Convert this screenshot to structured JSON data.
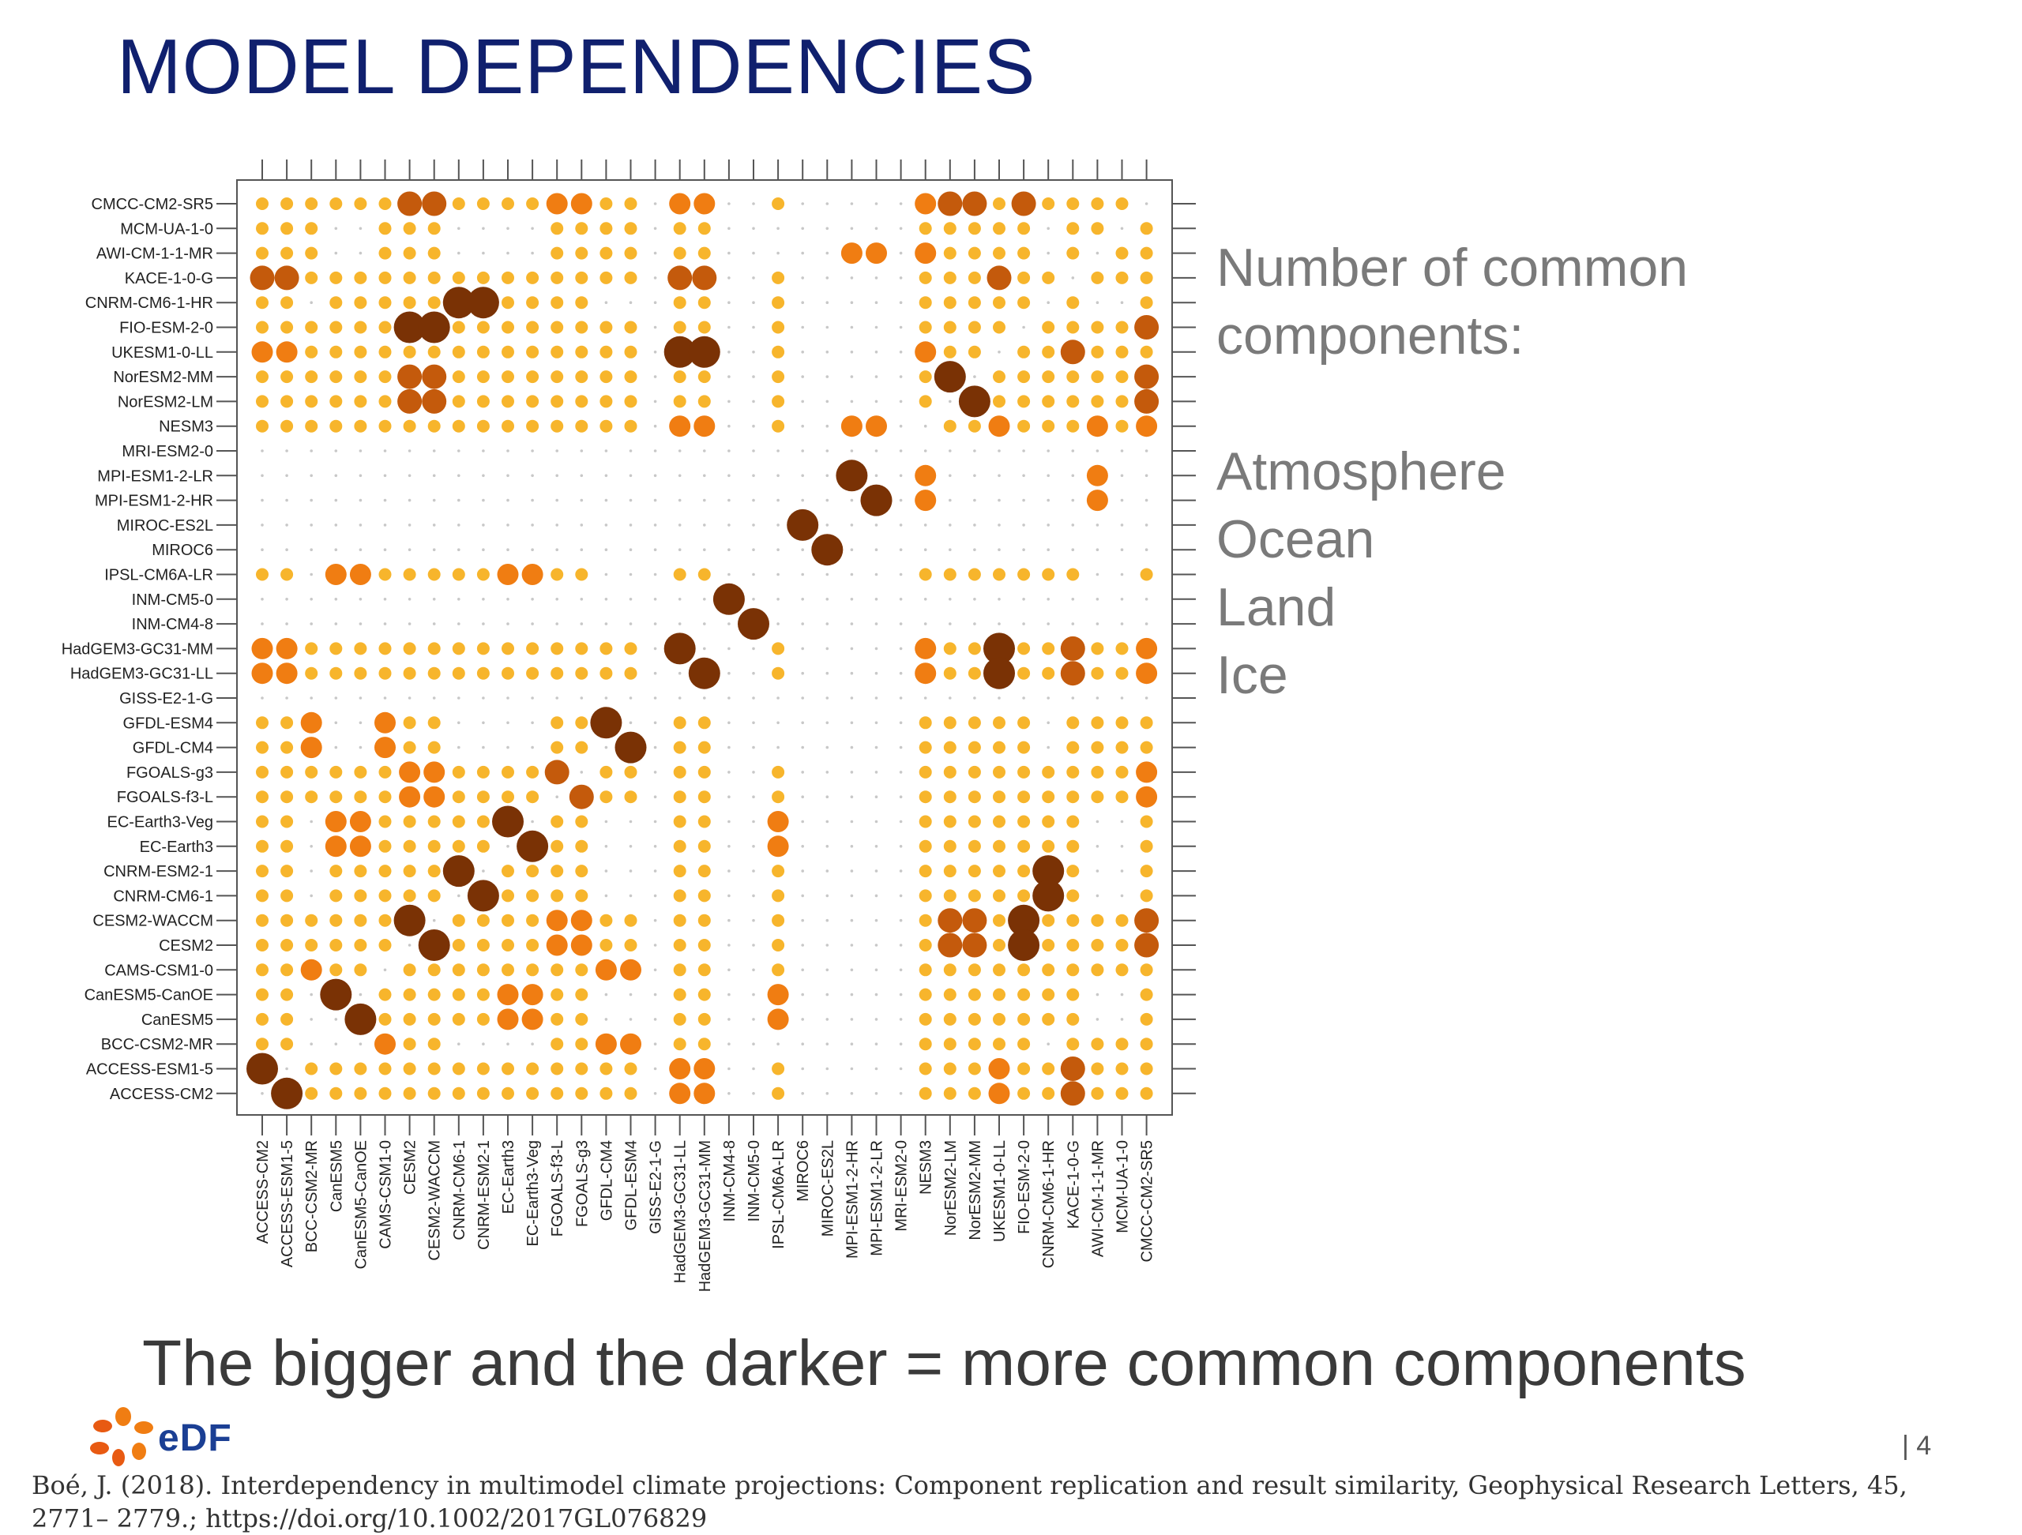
{
  "title": "MODEL DEPENDENCIES",
  "legend": {
    "heading": [
      "Number of common",
      "components:"
    ],
    "items": [
      "Atmosphere",
      "Ocean",
      "Land",
      "Ice"
    ]
  },
  "caption": "The bigger and the darker = more common components",
  "page_number": "| 4",
  "citation": "Boé, J. (2018). Interdependency in multimodel climate projections: Component replication and result similarity, Geophysical Research Letters, 45, 2771– 2779.; https://doi.org/10.1002/2017GL076829",
  "logo_text": "eDF",
  "colors": {
    "level1": "#f7b52c",
    "level2": "#f07d12",
    "level3": "#c45a0c",
    "level4": "#7a3205",
    "grid_dot": "#c8c8c8",
    "frame": "#555555",
    "title": "#10206e"
  },
  "chart_data": {
    "type": "matrix-bubble",
    "value_meaning": "number of common components (0-4)",
    "rows_top_to_bottom": [
      "CMCC-CM2-SR5",
      "MCM-UA-1-0",
      "AWI-CM-1-1-MR",
      "KACE-1-0-G",
      "CNRM-CM6-1-HR",
      "FIO-ESM-2-0",
      "UKESM1-0-LL",
      "NorESM2-MM",
      "NorESM2-LM",
      "NESM3",
      "MRI-ESM2-0",
      "MPI-ESM1-2-LR",
      "MPI-ESM1-2-HR",
      "MIROC-ES2L",
      "MIROC6",
      "IPSL-CM6A-LR",
      "INM-CM5-0",
      "INM-CM4-8",
      "HadGEM3-GC31-MM",
      "HadGEM3-GC31-LL",
      "GISS-E2-1-G",
      "GFDL-ESM4",
      "GFDL-CM4",
      "FGOALS-g3",
      "FGOALS-f3-L",
      "EC-Earth3-Veg",
      "EC-Earth3",
      "CNRM-ESM2-1",
      "CNRM-CM6-1",
      "CESM2-WACCM",
      "CESM2",
      "CAMS-CSM1-0",
      "CanESM5-CanOE",
      "CanESM5",
      "BCC-CSM2-MR",
      "ACCESS-ESM1-5",
      "ACCESS-CM2"
    ],
    "columns_left_to_right": [
      "ACCESS-CM2",
      "ACCESS-ESM1-5",
      "BCC-CSM2-MR",
      "CanESM5",
      "CanESM5-CanOE",
      "CAMS-CSM1-0",
      "CESM2",
      "CESM2-WACCM",
      "CNRM-CM6-1",
      "CNRM-ESM2-1",
      "EC-Earth3",
      "EC-Earth3-Veg",
      "FGOALS-f3-L",
      "FGOALS-g3",
      "GFDL-CM4",
      "GFDL-ESM4",
      "GISS-E2-1-G",
      "HadGEM3-GC31-LL",
      "HadGEM3-GC31-MM",
      "INM-CM4-8",
      "INM-CM5-0",
      "IPSL-CM6A-LR",
      "MIROC6",
      "MIROC-ES2L",
      "MPI-ESM1-2-HR",
      "MPI-ESM1-2-LR",
      "MRI-ESM2-0",
      "NESM3",
      "NorESM2-LM",
      "NorESM2-MM",
      "UKESM1-0-LL",
      "FIO-ESM-2-0",
      "CNRM-CM6-1-HR",
      "KACE-1-0-G",
      "AWI-CM-1-1-MR",
      "MCM-UA-1-0",
      "CMCC-CM2-SR5"
    ],
    "groups": [
      [
        "ACCESS-CM2",
        "ACCESS-ESM1-5",
        "KACE-1-0-G",
        "UKESM1-0-LL",
        "HadGEM3-GC31-LL",
        "HadGEM3-GC31-MM",
        "NorESM2-LM",
        "NorESM2-MM",
        "CESM2",
        "CESM2-WACCM",
        "FIO-ESM-2-0",
        "CMCC-CM2-SR5",
        "NESM3",
        "FGOALS-g3",
        "FGOALS-f3-L",
        "CAMS-CSM1-0",
        "GFDL-CM4",
        "GFDL-ESM4",
        "BCC-CSM2-MR",
        "MCM-UA-1-0",
        "AWI-CM-1-1-MR"
      ],
      [
        "CanESM5",
        "CanESM5-CanOE",
        "CNRM-CM6-1",
        "CNRM-ESM2-1",
        "CNRM-CM6-1-HR",
        "EC-Earth3",
        "EC-Earth3-Veg",
        "IPSL-CM6A-LR",
        "HadGEM3-GC31-LL",
        "HadGEM3-GC31-MM",
        "NESM3",
        "CESM2",
        "CESM2-WACCM",
        "FGOALS-f3-L",
        "FGOALS-g3",
        "UKESM1-0-LL",
        "FIO-ESM-2-0",
        "NorESM2-LM",
        "NorESM2-MM",
        "CMCC-CM2-SR5",
        "KACE-1-0-G",
        "ACCESS-CM2",
        "ACCESS-ESM1-5",
        "CAMS-CSM1-0"
      ]
    ],
    "pairs": [
      [
        "ACCESS-CM2",
        "ACCESS-ESM1-5",
        4
      ],
      [
        "KACE-1-0-G",
        "ACCESS-CM2",
        3
      ],
      [
        "KACE-1-0-G",
        "ACCESS-ESM1-5",
        3
      ],
      [
        "UKESM1-0-LL",
        "ACCESS-CM2",
        2
      ],
      [
        "UKESM1-0-LL",
        "ACCESS-ESM1-5",
        2
      ],
      [
        "HadGEM3-GC31-MM",
        "ACCESS-CM2",
        2
      ],
      [
        "HadGEM3-GC31-MM",
        "ACCESS-ESM1-5",
        2
      ],
      [
        "HadGEM3-GC31-LL",
        "ACCESS-CM2",
        2
      ],
      [
        "HadGEM3-GC31-LL",
        "ACCESS-ESM1-5",
        2
      ],
      [
        "HadGEM3-GC31-LL",
        "HadGEM3-GC31-MM",
        4
      ],
      [
        "UKESM1-0-LL",
        "HadGEM3-GC31-MM",
        4
      ],
      [
        "UKESM1-0-LL",
        "HadGEM3-GC31-LL",
        4
      ],
      [
        "KACE-1-0-G",
        "UKESM1-0-LL",
        3
      ],
      [
        "KACE-1-0-G",
        "HadGEM3-GC31-MM",
        3
      ],
      [
        "KACE-1-0-G",
        "HadGEM3-GC31-LL",
        3
      ],
      [
        "CESM2",
        "CESM2-WACCM",
        4
      ],
      [
        "NorESM2-LM",
        "NorESM2-MM",
        4
      ],
      [
        "FIO-ESM-2-0",
        "CESM2",
        4
      ],
      [
        "FIO-ESM-2-0",
        "CESM2-WACCM",
        4
      ],
      [
        "CMCC-CM2-SR5",
        "CESM2",
        3
      ],
      [
        "CMCC-CM2-SR5",
        "CESM2-WACCM",
        3
      ],
      [
        "CMCC-CM2-SR5",
        "NorESM2-LM",
        3
      ],
      [
        "CMCC-CM2-SR5",
        "NorESM2-MM",
        3
      ],
      [
        "CMCC-CM2-SR5",
        "FIO-ESM-2-0",
        3
      ],
      [
        "NorESM2-MM",
        "CESM2",
        3
      ],
      [
        "NorESM2-MM",
        "CESM2-WACCM",
        3
      ],
      [
        "NorESM2-LM",
        "CESM2",
        3
      ],
      [
        "NorESM2-LM",
        "CESM2-WACCM",
        3
      ],
      [
        "CNRM-CM6-1",
        "CNRM-ESM2-1",
        4
      ],
      [
        "CNRM-CM6-1-HR",
        "CNRM-CM6-1",
        4
      ],
      [
        "CNRM-CM6-1-HR",
        "CNRM-ESM2-1",
        4
      ],
      [
        "EC-Earth3",
        "EC-Earth3-Veg",
        4
      ],
      [
        "CanESM5",
        "CanESM5-CanOE",
        4
      ],
      [
        "GFDL-CM4",
        "GFDL-ESM4",
        4
      ],
      [
        "FGOALS-f3-L",
        "FGOALS-g3",
        3
      ],
      [
        "MPI-ESM1-2-HR",
        "MPI-ESM1-2-LR",
        4
      ],
      [
        "MIROC6",
        "MIROC-ES2L",
        4
      ],
      [
        "INM-CM4-8",
        "INM-CM5-0",
        4
      ],
      [
        "EC-Earth3",
        "CanESM5",
        2
      ],
      [
        "EC-Earth3",
        "CanESM5-CanOE",
        2
      ],
      [
        "EC-Earth3-Veg",
        "CanESM5",
        2
      ],
      [
        "EC-Earth3-Veg",
        "CanESM5-CanOE",
        2
      ],
      [
        "BCC-CSM2-MR",
        "CAMS-CSM1-0",
        2
      ],
      [
        "BCC-CSM2-MR",
        "GFDL-CM4",
        2
      ],
      [
        "BCC-CSM2-MR",
        "GFDL-ESM4",
        2
      ],
      [
        "CAMS-CSM1-0",
        "GFDL-CM4",
        2
      ],
      [
        "CAMS-CSM1-0",
        "GFDL-ESM4",
        2
      ],
      [
        "FGOALS-f3-L",
        "CESM2",
        2
      ],
      [
        "FGOALS-f3-L",
        "CESM2-WACCM",
        2
      ],
      [
        "FGOALS-g3",
        "CESM2",
        2
      ],
      [
        "FGOALS-g3",
        "CESM2-WACCM",
        2
      ],
      [
        "NESM3",
        "HadGEM3-GC31-LL",
        2
      ],
      [
        "NESM3",
        "HadGEM3-GC31-MM",
        2
      ],
      [
        "NESM3",
        "UKESM1-0-LL",
        2
      ],
      [
        "NESM3",
        "MPI-ESM1-2-HR",
        2
      ],
      [
        "NESM3",
        "MPI-ESM1-2-LR",
        2
      ],
      [
        "AWI-CM-1-1-MR",
        "MPI-ESM1-2-HR",
        2
      ],
      [
        "AWI-CM-1-1-MR",
        "MPI-ESM1-2-LR",
        2
      ],
      [
        "AWI-CM-1-1-MR",
        "NESM3",
        2
      ],
      [
        "IPSL-CM6A-LR",
        "EC-Earth3",
        2
      ],
      [
        "IPSL-CM6A-LR",
        "EC-Earth3-Veg",
        2
      ],
      [
        "IPSL-CM6A-LR",
        "CanESM5",
        2
      ],
      [
        "IPSL-CM6A-LR",
        "CanESM5-CanOE",
        2
      ],
      [
        "IPSL-CM6A-LR",
        "CNRM-CM6-1",
        1
      ],
      [
        "IPSL-CM6A-LR",
        "CNRM-ESM2-1",
        1
      ],
      [
        "CMCC-CM2-SR5",
        "FGOALS-f3-L",
        2
      ],
      [
        "CMCC-CM2-SR5",
        "FGOALS-g3",
        2
      ],
      [
        "CMCC-CM2-SR5",
        "HadGEM3-GC31-LL",
        2
      ],
      [
        "CMCC-CM2-SR5",
        "HadGEM3-GC31-MM",
        2
      ],
      [
        "CMCC-CM2-SR5",
        "NESM3",
        2
      ],
      [
        "NESM3",
        "CESM2",
        1
      ],
      [
        "NESM3",
        "CESM2-WACCM",
        1
      ],
      [
        "NESM3",
        "FIO-ESM-2-0",
        1
      ],
      [
        "CMCC-CM2-SR5",
        "ACCESS-CM2",
        1
      ],
      [
        "CMCC-CM2-SR5",
        "CNRM-CM6-1",
        1
      ]
    ],
    "default_shared_group_value": 1
  }
}
